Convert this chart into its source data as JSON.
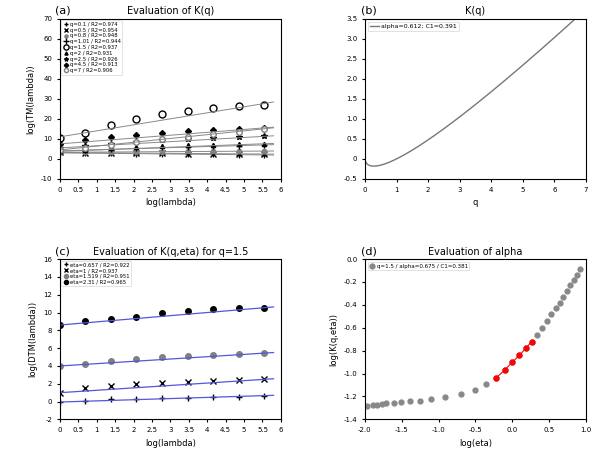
{
  "panel_a": {
    "title": "Evaluation of K(q)",
    "xlabel": "log(lambda)",
    "ylabel": "log(TM(lambda))",
    "xlim": [
      0,
      6
    ],
    "ylim": [
      -10,
      70
    ],
    "xticks": [
      0,
      0.5,
      1,
      1.5,
      2,
      2.5,
      3,
      3.5,
      4,
      4.5,
      5,
      5.5,
      6
    ],
    "yticks": [
      -10,
      0,
      10,
      20,
      30,
      40,
      50,
      60,
      70
    ],
    "series": [
      {
        "label": "q=0.1 / R2=0.974",
        "marker": "+",
        "mfc": "black",
        "mec": "black",
        "ms": 4,
        "x": [
          0,
          0.693,
          1.386,
          2.079,
          2.773,
          3.466,
          4.159,
          4.852,
          5.545
        ],
        "y": [
          3.0,
          2.85,
          2.7,
          2.55,
          2.4,
          2.3,
          2.2,
          2.1,
          2.0
        ],
        "slope": -0.18,
        "intercept": 3.0
      },
      {
        "label": "q=0.5 / R2=0.954",
        "marker": "x",
        "mfc": "black",
        "mec": "black",
        "ms": 4,
        "x": [
          0,
          0.693,
          1.386,
          2.079,
          2.773,
          3.466,
          4.159,
          4.852,
          5.545
        ],
        "y": [
          3.2,
          3.0,
          2.9,
          2.8,
          2.7,
          2.6,
          2.55,
          2.5,
          2.4
        ],
        "slope": -0.14,
        "intercept": 3.2
      },
      {
        "label": "q=0.8 / R2=0.948",
        "marker": "o",
        "mfc": "gray",
        "mec": "gray",
        "ms": 3,
        "x": [
          0,
          0.693,
          1.386,
          2.079,
          2.773,
          3.466,
          4.159,
          4.852,
          5.545
        ],
        "y": [
          3.3,
          3.4,
          3.5,
          3.6,
          3.65,
          3.7,
          3.8,
          3.85,
          3.9
        ],
        "slope": 0.11,
        "intercept": 3.3
      },
      {
        "label": "q=1.01 / R2=0.944",
        "marker": "+",
        "mfc": "black",
        "mec": "black",
        "ms": 5,
        "x": [
          0,
          0.693,
          1.386,
          2.079,
          2.773,
          3.466,
          4.159,
          4.852,
          5.545
        ],
        "y": [
          4.0,
          4.5,
          5.0,
          5.5,
          5.8,
          6.1,
          6.4,
          6.6,
          7.0
        ],
        "slope": 0.54,
        "intercept": 4.0
      },
      {
        "label": "q=1.5 / R2=0.937",
        "marker": "o",
        "mfc": "white",
        "mec": "black",
        "ms": 5,
        "x": [
          0,
          0.693,
          1.386,
          2.079,
          2.773,
          3.466,
          4.159,
          4.852,
          5.545
        ],
        "y": [
          10.5,
          13.0,
          17.0,
          20.0,
          22.5,
          24.0,
          25.5,
          26.5,
          27.0
        ],
        "slope": 3.0,
        "intercept": 11.0
      },
      {
        "label": "q=2 / R2=0.931",
        "marker": "^",
        "mfc": "black",
        "mec": "black",
        "ms": 3,
        "x": [
          0,
          0.693,
          1.386,
          2.079,
          2.773,
          3.466,
          4.159,
          4.852,
          5.545
        ],
        "y": [
          3.8,
          4.5,
          5.2,
          5.8,
          6.3,
          6.7,
          7.0,
          7.3,
          7.5
        ],
        "slope": 0.68,
        "intercept": 3.8
      },
      {
        "label": "q=2.5 / R2=0.926",
        "marker": "*",
        "mfc": "black",
        "mec": "black",
        "ms": 4,
        "x": [
          0,
          0.693,
          1.386,
          2.079,
          2.773,
          3.466,
          4.159,
          4.852,
          5.545
        ],
        "y": [
          5.5,
          6.5,
          7.5,
          8.5,
          9.2,
          9.8,
          10.3,
          10.8,
          11.2
        ],
        "slope": 1.04,
        "intercept": 5.5
      },
      {
        "label": "q=4.5 / R2=0.913",
        "marker": "D",
        "mfc": "black",
        "mec": "black",
        "ms": 3,
        "x": [
          0,
          0.693,
          1.386,
          2.079,
          2.773,
          3.466,
          4.159,
          4.852,
          5.545
        ],
        "y": [
          7.5,
          9.5,
          11.0,
          12.0,
          13.0,
          14.0,
          14.5,
          15.0,
          15.5
        ],
        "slope": 1.44,
        "intercept": 7.5
      },
      {
        "label": "q=7 / R2=0.906",
        "marker": "o",
        "mfc": "white",
        "mec": "gray",
        "ms": 4,
        "x": [
          0,
          0.693,
          1.386,
          2.079,
          2.773,
          3.466,
          4.159,
          4.852,
          5.545
        ],
        "y": [
          4.5,
          5.5,
          7.0,
          8.5,
          10.0,
          11.0,
          12.5,
          13.5,
          15.0
        ],
        "slope": 1.9,
        "intercept": 4.5
      }
    ]
  },
  "panel_b": {
    "title": "K(q)",
    "xlabel": "q",
    "ylabel": "",
    "xlim": [
      0,
      7
    ],
    "ylim": [
      -0.5,
      3.5
    ],
    "yticks": [
      -0.5,
      0,
      0.5,
      1.0,
      1.5,
      2.0,
      2.5,
      3.0,
      3.5
    ],
    "xticks": [
      0,
      1,
      2,
      3,
      4,
      5,
      6,
      7
    ],
    "legend": "alpha=0.612; C1=0.391",
    "alpha": 0.612,
    "C1": 0.391
  },
  "panel_c": {
    "title": "Evaluation of K(q,eta) for q=1.5",
    "xlabel": "log(lambda)",
    "ylabel": "log(DTM(lambda))",
    "xlim": [
      0,
      6
    ],
    "ylim": [
      -2,
      16
    ],
    "xticks": [
      0,
      0.5,
      1,
      1.5,
      2,
      2.5,
      3,
      3.5,
      4,
      4.5,
      5,
      5.5,
      6
    ],
    "yticks": [
      -2,
      0,
      2,
      4,
      6,
      8,
      10,
      12,
      14,
      16
    ],
    "line_color": "#5555dd",
    "series": [
      {
        "label": "eta=0.657 / R2=0.922",
        "marker": "+",
        "mfc": "black",
        "mec": "black",
        "ms": 4,
        "x": [
          0,
          0.693,
          1.386,
          2.079,
          2.773,
          3.466,
          4.159,
          4.852,
          5.545
        ],
        "y": [
          -0.05,
          0.1,
          0.25,
          0.3,
          0.4,
          0.45,
          0.5,
          0.55,
          0.65
        ],
        "slope": 0.13,
        "intercept": -0.05
      },
      {
        "label": "eta=1 / R2=0.937",
        "marker": "x",
        "mfc": "black",
        "mec": "black",
        "ms": 4,
        "x": [
          0,
          0.693,
          1.386,
          2.079,
          2.773,
          3.466,
          4.159,
          4.852,
          5.545
        ],
        "y": [
          1.0,
          1.5,
          1.7,
          2.0,
          2.1,
          2.2,
          2.3,
          2.4,
          2.5
        ],
        "slope": 0.27,
        "intercept": 1.0
      },
      {
        "label": "eta=1.519 / R2=0.951",
        "marker": "o",
        "mfc": "gray",
        "mec": "gray",
        "ms": 4,
        "x": [
          0,
          0.693,
          1.386,
          2.079,
          2.773,
          3.466,
          4.159,
          4.852,
          5.545
        ],
        "y": [
          4.0,
          4.2,
          4.6,
          4.75,
          5.0,
          5.1,
          5.2,
          5.3,
          5.4
        ],
        "slope": 0.26,
        "intercept": 4.0
      },
      {
        "label": "eta=2.31 / R2=0.965",
        "marker": "o",
        "mfc": "black",
        "mec": "black",
        "ms": 4,
        "x": [
          0,
          0.693,
          1.386,
          2.079,
          2.773,
          3.466,
          4.159,
          4.852,
          5.545
        ],
        "y": [
          8.6,
          9.0,
          9.3,
          9.5,
          10.0,
          10.2,
          10.4,
          10.5,
          10.5
        ],
        "slope": 0.35,
        "intercept": 8.6
      }
    ]
  },
  "panel_d": {
    "title": "Evaluation of alpha",
    "xlabel": "log(eta)",
    "ylabel": "log(K(q,eta))",
    "xlim": [
      -2,
      1
    ],
    "ylim": [
      -1.4,
      0.0
    ],
    "xticks": [
      -2.0,
      -1.5,
      -1.0,
      -0.5,
      0.0,
      0.5,
      1.0
    ],
    "yticks": [
      -1.4,
      -1.2,
      -1.0,
      -0.8,
      -0.6,
      -0.4,
      -0.2,
      0.0
    ],
    "legend": "q=1.5 / alpha=0.675 / C1=0.381",
    "gray_x": [
      -1.966,
      -1.897,
      -1.833,
      -1.772,
      -1.715,
      -1.609,
      -1.504,
      -1.386,
      -1.252,
      -1.099,
      -0.916,
      -0.693,
      -0.511,
      -0.357,
      -0.223,
      -0.105,
      0.0,
      0.095,
      0.182,
      0.262,
      0.336,
      0.405,
      0.47,
      0.531,
      0.588,
      0.642,
      0.693,
      0.742,
      0.788,
      0.833,
      0.875,
      0.916
    ],
    "gray_y": [
      -1.28,
      -1.27,
      -1.27,
      -1.265,
      -1.26,
      -1.255,
      -1.25,
      -1.24,
      -1.235,
      -1.225,
      -1.205,
      -1.175,
      -1.14,
      -1.09,
      -1.04,
      -0.97,
      -0.9,
      -0.84,
      -0.78,
      -0.72,
      -0.66,
      -0.6,
      -0.54,
      -0.48,
      -0.43,
      -0.38,
      -0.33,
      -0.28,
      -0.23,
      -0.18,
      -0.14,
      -0.09
    ],
    "red_x": [
      -0.223,
      -0.105,
      0.0,
      0.095,
      0.182,
      0.262
    ],
    "red_y": [
      -1.04,
      -0.97,
      -0.9,
      -0.84,
      -0.78,
      -0.72
    ],
    "slope": 0.675,
    "C1": 0.381
  }
}
